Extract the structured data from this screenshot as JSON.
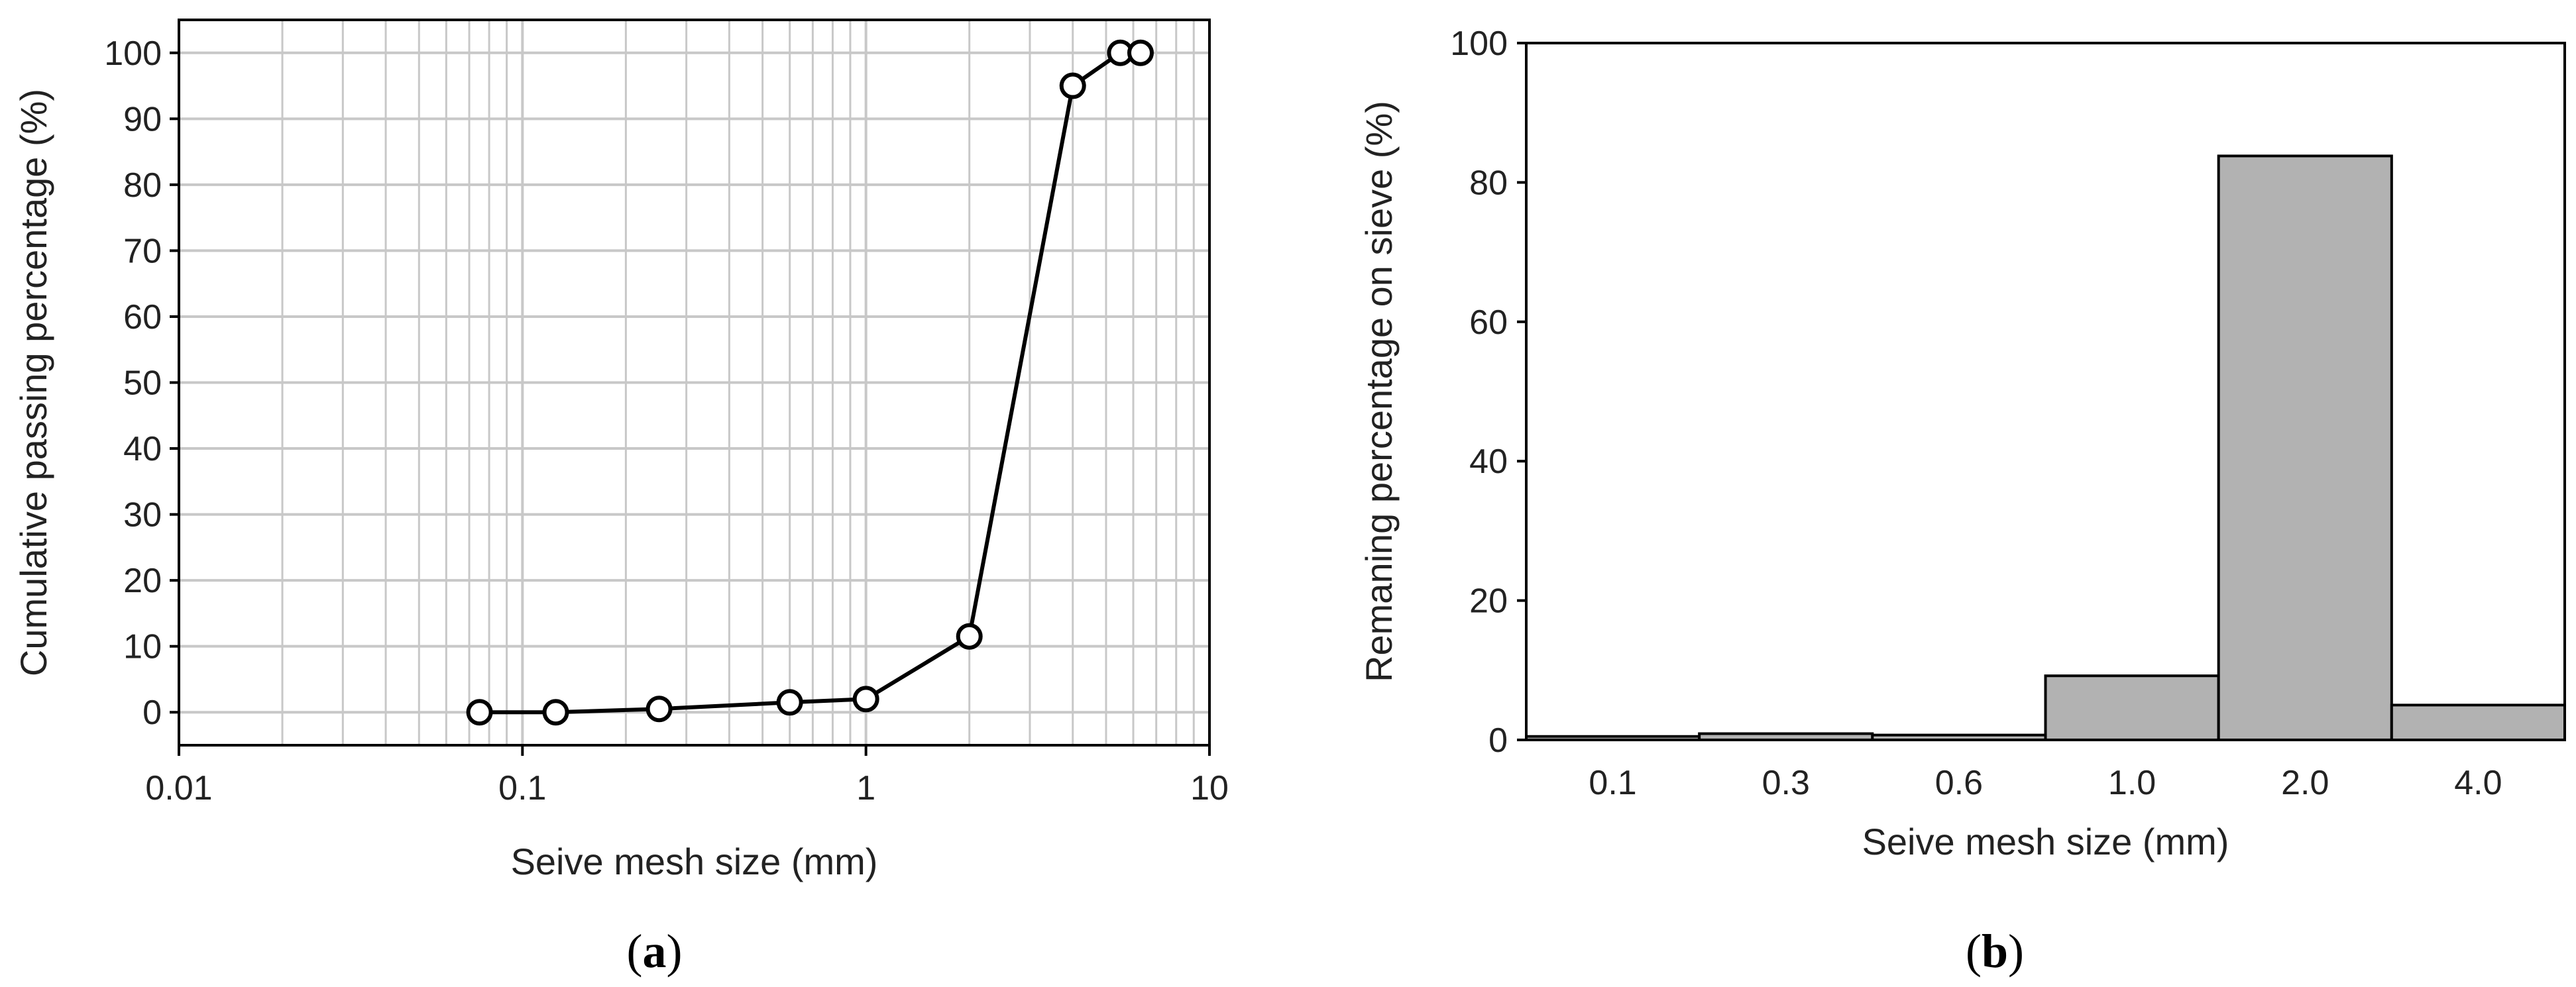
{
  "chart_data": [
    {
      "type": "line",
      "panel_label": "a",
      "xlabel": "Seive mesh size (mm)",
      "ylabel": "Cumulative passing percentage (%)",
      "xscale": "log",
      "xlim": [
        0.01,
        10
      ],
      "ylim": [
        -5,
        105
      ],
      "xticks": [
        0.01,
        0.1,
        1,
        10
      ],
      "xtick_labels": [
        "0.01",
        "0.1",
        "1",
        "10"
      ],
      "yticks": [
        0,
        10,
        20,
        30,
        40,
        50,
        60,
        70,
        80,
        90,
        100
      ],
      "ytick_labels": [
        "0",
        "10",
        "20",
        "30",
        "40",
        "50",
        "60",
        "70",
        "80",
        "90",
        "100"
      ],
      "grid": true,
      "series": [
        {
          "x": [
            0.075,
            0.125,
            0.25,
            0.6,
            1.0,
            2.0,
            4.0,
            5.5,
            6.3
          ],
          "y": [
            0,
            0,
            0.5,
            1.5,
            2,
            11.5,
            95,
            100,
            100
          ],
          "marker": "open-circle",
          "color": "#000000"
        }
      ]
    },
    {
      "type": "bar",
      "panel_label": "b",
      "xlabel": "Seive mesh size (mm)",
      "ylabel": "Remaning percentage on sieve (%)",
      "categories": [
        "0.1",
        "0.3",
        "0.6",
        "1.0",
        "2.0",
        "4.0"
      ],
      "values": [
        0.5,
        0.9,
        0.7,
        9.2,
        83.8,
        5.0
      ],
      "ylim": [
        0,
        100
      ],
      "yticks": [
        0,
        20,
        40,
        60,
        80,
        100
      ],
      "ytick_labels": [
        "0",
        "20",
        "40",
        "60",
        "80",
        "100"
      ],
      "grid": false,
      "bar_color": "#b2b2b2",
      "bar_edge_color": "#000000"
    }
  ]
}
